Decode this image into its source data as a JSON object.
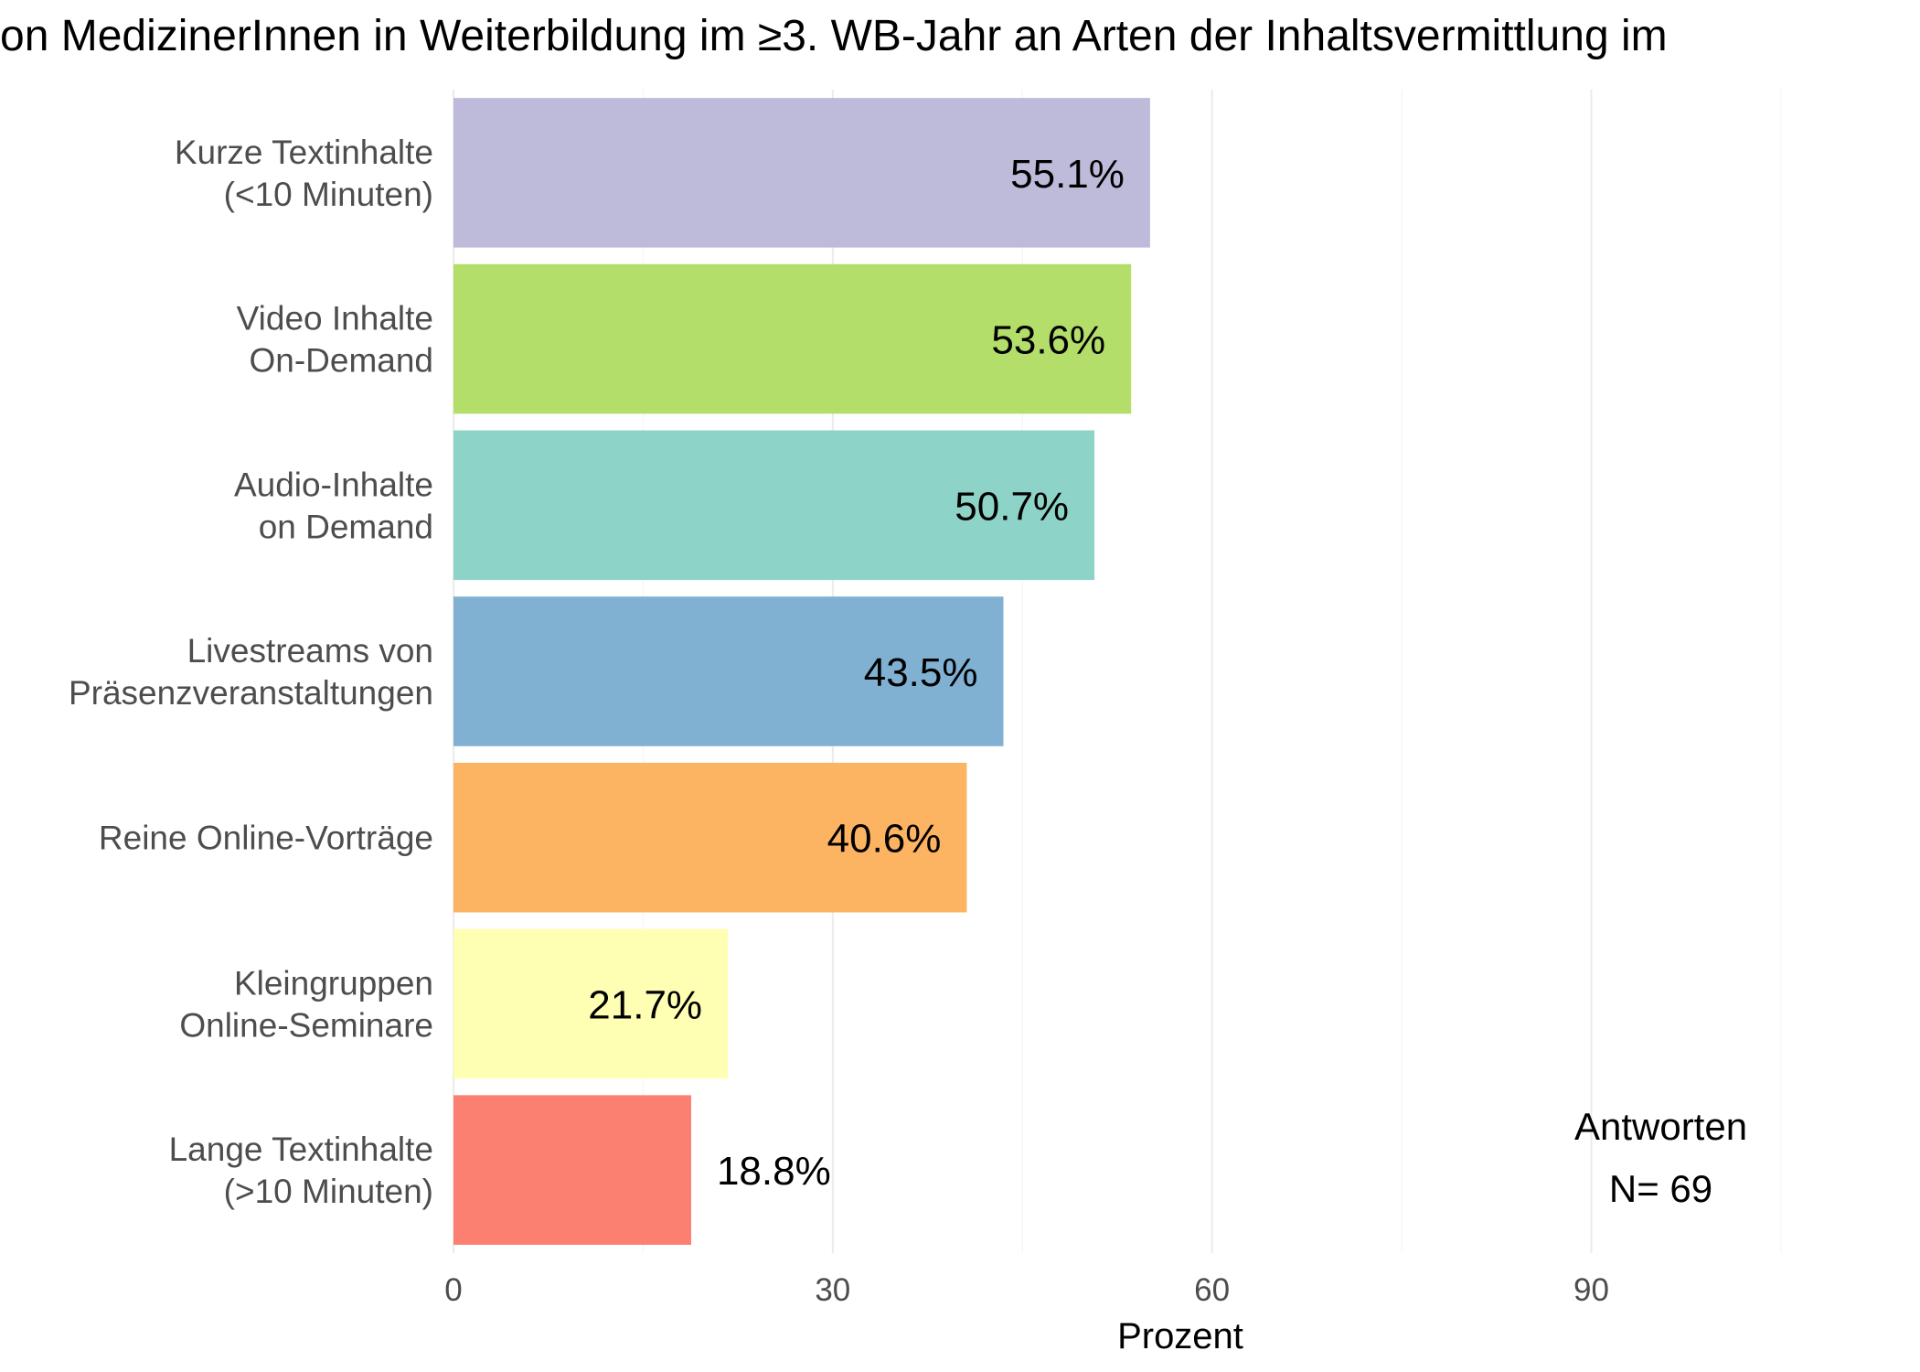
{
  "chart_data": {
    "type": "bar",
    "orientation": "horizontal",
    "title": "on MedizinerInnen in Weiterbildung im ≥3. WB-Jahr an Arten der Inhaltsvermittlung im",
    "xlabel": "Prozent",
    "ylabel": "",
    "xlim": [
      0,
      116
    ],
    "xticks": [
      0,
      30,
      60,
      90
    ],
    "grid": true,
    "categories": [
      [
        "Kurze Textinhalte",
        "(<10 Minuten)"
      ],
      [
        "Video Inhalte",
        "On-Demand"
      ],
      [
        "Audio-Inhalte",
        "on Demand"
      ],
      [
        "Livestreams von",
        "Präsenzveranstaltungen"
      ],
      [
        "Reine Online-Vorträge"
      ],
      [
        "Kleingruppen",
        "Online-Seminare"
      ],
      [
        "Lange Textinhalte",
        "(>10 Minuten)"
      ]
    ],
    "values": [
      55.1,
      53.6,
      50.7,
      43.5,
      40.6,
      21.7,
      18.8
    ],
    "value_labels": [
      "55.1%",
      "53.6%",
      "50.7%",
      "43.5%",
      "40.6%",
      "21.7%",
      "18.8%"
    ],
    "colors": [
      "#bebada",
      "#b3de69",
      "#8dd3c7",
      "#80b1d3",
      "#fdb462",
      "#ffffb3",
      "#fb8072"
    ],
    "annotation": [
      "Antworten",
      "N= 69"
    ]
  }
}
